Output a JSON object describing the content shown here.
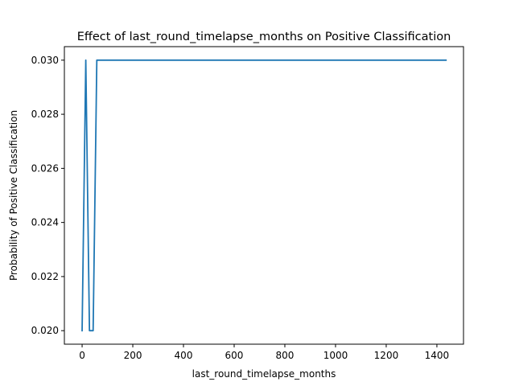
{
  "chart_data": {
    "type": "line",
    "title": "Effect of last_round_timelapse_months on Positive Classification",
    "xlabel": "last_round_timelapse_months",
    "ylabel": "Probability of Positive Classification",
    "xlim": [
      -70,
      1505
    ],
    "ylim": [
      0.0195,
      0.0305
    ],
    "x_ticks": [
      0,
      200,
      400,
      600,
      800,
      1000,
      1200,
      1400
    ],
    "x_tick_labels": [
      "0",
      "200",
      "400",
      "600",
      "800",
      "1000",
      "1200",
      "1400"
    ],
    "y_ticks": [
      0.02,
      0.022,
      0.024,
      0.026,
      0.028,
      0.03
    ],
    "y_tick_labels": [
      "0.020",
      "0.022",
      "0.024",
      "0.026",
      "0.028",
      "0.030"
    ],
    "grid": false,
    "series": [
      {
        "color": "#1f77b4",
        "x": [
          0,
          14.5,
          29,
          43.5,
          58,
          72.5,
          87,
          400,
          800,
          1200,
          1436
        ],
        "y": [
          0.02,
          0.03,
          0.02,
          0.02,
          0.03,
          0.03,
          0.03,
          0.03,
          0.03,
          0.03,
          0.03
        ]
      }
    ]
  }
}
